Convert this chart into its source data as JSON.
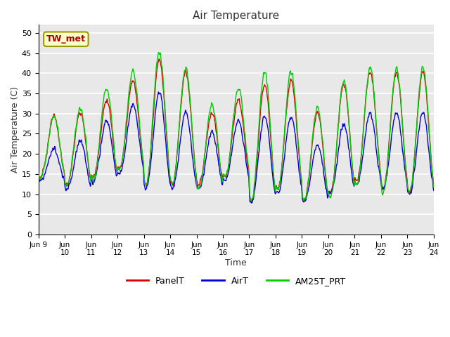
{
  "title": "Air Temperature",
  "xlabel": "Time",
  "ylabel": "Air Temperature (C)",
  "annotation_text": "TW_met",
  "ylim": [
    0,
    52
  ],
  "yticks": [
    0,
    5,
    10,
    15,
    20,
    25,
    30,
    35,
    40,
    45,
    50
  ],
  "fig_bg_color": "#ffffff",
  "plot_bg_color": "#e8e8e8",
  "grid_color": "#ffffff",
  "line_panelT": "#dd0000",
  "line_airT": "#0000dd",
  "line_AM25T": "#00cc00",
  "linewidth": 1.0,
  "legend_labels": [
    "PanelT",
    "AirT",
    "AM25T_PRT"
  ],
  "x_tick_labels": [
    "Jun 9",
    "Jun\n10",
    "Jun\n11",
    "Jun\n12",
    "Jun\n13",
    "Jun\n14",
    "Jun\n15",
    "Jun\n16",
    "Jun\n17",
    "Jun\n18",
    "Jun\n19",
    "Jun\n20",
    "Jun\n21",
    "Jun\n22",
    "Jun\n23",
    "Jun\n24"
  ],
  "num_days": 15,
  "points_per_day": 96,
  "day_mins_panel": [
    14,
    12,
    14,
    16,
    12,
    12,
    12,
    14,
    8,
    11,
    8,
    10,
    13,
    11,
    10
  ],
  "day_maxs_panel": [
    29,
    30,
    33,
    38,
    43,
    40,
    30,
    33,
    37,
    38,
    30,
    37,
    40,
    40,
    40
  ],
  "day_mins_air": [
    13,
    11,
    13,
    15,
    11,
    11,
    11,
    13,
    8,
    10,
    8,
    10,
    12,
    11,
    10
  ],
  "day_maxs_air": [
    21,
    23,
    28,
    32,
    35,
    30,
    25,
    28,
    29,
    29,
    22,
    27,
    30,
    30,
    30
  ],
  "day_mins_am25": [
    14,
    12,
    13,
    16,
    12,
    12,
    11,
    14,
    8,
    11,
    8,
    9,
    12,
    10,
    10
  ],
  "day_maxs_am25": [
    29,
    31,
    36,
    40,
    45,
    41,
    32,
    36,
    40,
    40,
    31,
    38,
    41,
    41,
    41
  ]
}
